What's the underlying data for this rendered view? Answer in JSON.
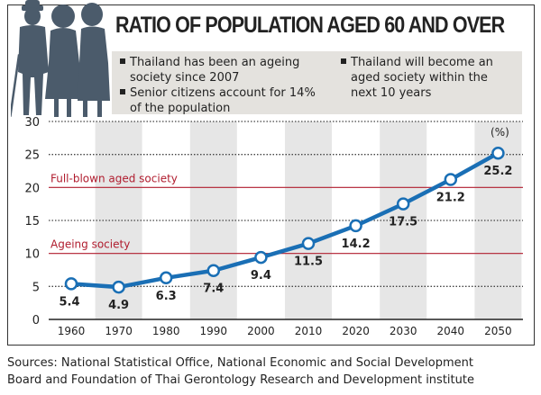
{
  "header": {
    "title": "RATIO OF POPULATION AGED 60 AND OVER",
    "notes": [
      [
        "Thailand has been an ageing",
        "society since 2007"
      ],
      [
        "Senior citizens account for 14%",
        "of the population"
      ],
      [
        "Thailand will become an",
        "aged society within the",
        "next 10 years"
      ]
    ]
  },
  "sources": [
    "Sources:  National Statistical Office, National Economic and Social Development",
    "Board and Foundation of Thai Gerontology Research and Development institute"
  ],
  "colors": {
    "line": "#1a6fb5",
    "threshold": "#b01c2e",
    "band": "#e6e6e6",
    "silhouette": "#4b5b6b"
  },
  "icons": [
    "elderly-people-silhouette"
  ],
  "chart_data": {
    "type": "line",
    "title": "RATIO OF POPULATION AGED 60 AND OVER",
    "unit_label": "(%)",
    "x": [
      1960,
      1970,
      1980,
      1990,
      2000,
      2010,
      2020,
      2030,
      2040,
      2050
    ],
    "values": [
      5.4,
      4.9,
      6.3,
      7.4,
      9.4,
      11.5,
      14.2,
      17.5,
      21.2,
      25.2
    ],
    "data_labels": [
      "5.4",
      "4.9",
      "6.3",
      "7.4",
      "9.4",
      "11.5",
      "14.2",
      "17.5",
      "21.2",
      "25.2"
    ],
    "ylim": [
      0,
      30
    ],
    "yticks": [
      0,
      5,
      10,
      15,
      20,
      25,
      30
    ],
    "grid": "dotted horizontal",
    "thresholds": [
      {
        "value": 10,
        "label": "Ageing society"
      },
      {
        "value": 20,
        "label": "Full-blown aged society"
      }
    ]
  }
}
